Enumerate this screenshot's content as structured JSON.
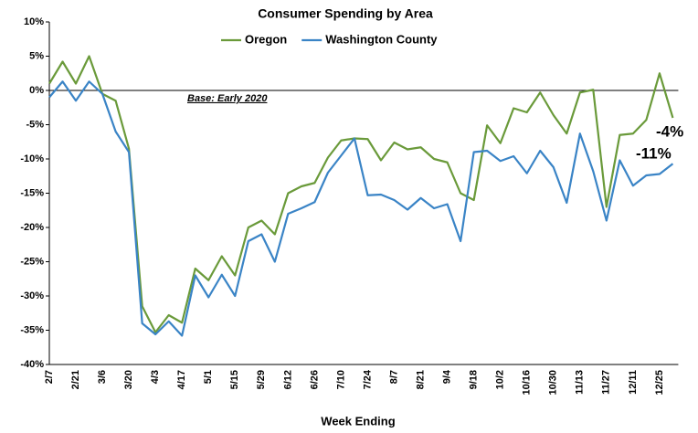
{
  "chart_data": {
    "type": "line",
    "title": "Consumer Spending by Area",
    "x_label": "Week Ending",
    "annotations": [
      {
        "text": "Base: Early 2020"
      },
      {
        "text": "-4%"
      },
      {
        "text": "-11%"
      }
    ],
    "categories": [
      "2/7",
      null,
      "2/21",
      null,
      "3/6",
      null,
      "3/20",
      null,
      "4/3",
      null,
      "4/17",
      null,
      "5/1",
      null,
      "5/15",
      null,
      "5/29",
      null,
      "6/12",
      null,
      "6/26",
      null,
      "7/10",
      null,
      "7/24",
      null,
      "8/7",
      null,
      "8/21",
      null,
      "9/4",
      null,
      "9/18",
      null,
      "10/2",
      null,
      "10/16",
      null,
      "10/30",
      null,
      "11/13",
      null,
      "11/27",
      null,
      "12/11",
      null,
      "12/25",
      null
    ],
    "series": [
      {
        "name": "Oregon",
        "color": "#6a9a3a",
        "values": [
          1,
          4.2,
          1,
          5,
          -0.5,
          -1.5,
          -8.5,
          -31.5,
          -35.3,
          -32.8,
          -33.9,
          -26,
          -27.7,
          -24.2,
          -27,
          -20,
          -19,
          -21,
          -15,
          -14,
          -13.5,
          -9.8,
          -7.3,
          -7,
          -7.1,
          -10.2,
          -7.6,
          -8.6,
          -8.3,
          -10,
          -10.5,
          -15,
          -16,
          -5.1,
          -7.7,
          -2.6,
          -3.2,
          -0.3,
          -3.6,
          -6.3,
          -0.3,
          0.1,
          -17,
          -6.5,
          -6.3,
          -4.3,
          2.5,
          -4
        ]
      },
      {
        "name": "Washington County",
        "color": "#3a84c6",
        "values": [
          -1,
          1.3,
          -1.5,
          1.3,
          -0.5,
          -6,
          -9,
          -34,
          -35.6,
          -33.7,
          -35.8,
          -27,
          -30.2,
          -26.9,
          -30,
          -22,
          -21,
          -25,
          -18,
          -17.2,
          -16.3,
          -12,
          -9.5,
          -7,
          -15.3,
          -15.2,
          -16,
          -17.4,
          -15.7,
          -17.2,
          -16.6,
          -22,
          -9,
          -8.8,
          -10.3,
          -9.6,
          -12.1,
          -8.8,
          -11.2,
          -16.4,
          -6.3,
          -11.8,
          -19,
          -10.2,
          -13.9,
          -12.4,
          -12.2,
          -10.7
        ]
      }
    ],
    "ylim": [
      -40,
      10
    ],
    "yticks": [
      {
        "value": -40,
        "label": "-40%"
      },
      {
        "value": -35,
        "label": "-35%"
      },
      {
        "value": -30,
        "label": "-30%"
      },
      {
        "value": -25,
        "label": "-25%"
      },
      {
        "value": -20,
        "label": "-20%"
      },
      {
        "value": -15,
        "label": "-15%"
      },
      {
        "value": -10,
        "label": "-10%"
      },
      {
        "value": -5,
        "label": "-5%"
      },
      {
        "value": 0,
        "label": "0%"
      },
      {
        "value": 5,
        "label": "5%"
      },
      {
        "value": 10,
        "label": "10%"
      }
    ],
    "grid": false,
    "legend": "top"
  }
}
